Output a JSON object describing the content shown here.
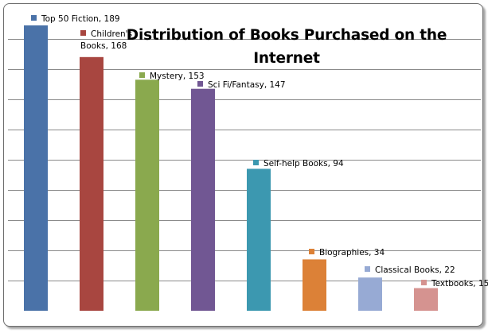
{
  "chart_data": {
    "type": "bar",
    "title": "Distribution of Books Purchased on the Internet",
    "xlabel": "",
    "ylabel": "",
    "ylim": [
      0,
      200
    ],
    "y_gridline_step": 20,
    "grid": true,
    "legend": "none",
    "categories": [
      "Top 50 Fiction",
      "Children's Books",
      "Mystery",
      "Sci Fi/Fantasy",
      "Self-help Books",
      "Biographies",
      "Classical Books",
      "Textbooks"
    ],
    "values": [
      189,
      168,
      153,
      147,
      94,
      34,
      22,
      15
    ],
    "colors": [
      "#4a72a8",
      "#a84640",
      "#8aa94e",
      "#715793",
      "#3c98b0",
      "#dc8137",
      "#97aad4",
      "#d59390"
    ],
    "data_labels": [
      {
        "lines": [
          "Top 50 Fiction, 189"
        ]
      },
      {
        "lines": [
          "Children's",
          "Books, 168"
        ]
      },
      {
        "lines": [
          "Mystery, 153"
        ]
      },
      {
        "lines": [
          "Sci Fi/Fantasy, 147"
        ]
      },
      {
        "lines": [
          "Self-help Books, 94"
        ]
      },
      {
        "lines": [
          "Biographies, 34"
        ]
      },
      {
        "lines": [
          "Classical Books, 22"
        ]
      },
      {
        "lines": [
          "Textbooks, 15"
        ]
      }
    ]
  }
}
